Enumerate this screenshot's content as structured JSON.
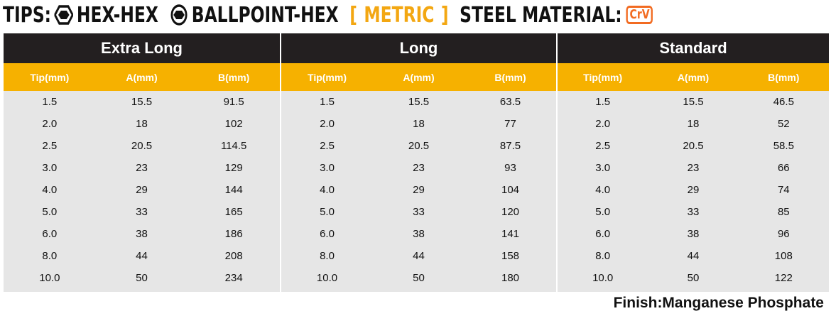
{
  "header": {
    "tips_label": "TIPS:",
    "tip1": "HEX-HEX",
    "tip2": "BALLPOINT-HEX",
    "bracket_open": "[",
    "metric": "METRIC",
    "bracket_close": "]",
    "steel_label": "STEEL MATERIAL:",
    "material_badge": "CrV",
    "icon1": "hex-icon",
    "icon2": "ballpoint-icon"
  },
  "colors": {
    "group_header_bg": "#231f20",
    "sub_header_bg": "#f6b100",
    "metric_text": "#f3a712",
    "badge": "#f26b21",
    "table_bg": "#e6e6e6"
  },
  "groups": [
    {
      "title": "Extra Long",
      "columns": [
        "Tip(mm)",
        "A(mm)",
        "B(mm)"
      ],
      "rows": [
        [
          "1.5",
          "15.5",
          "91.5"
        ],
        [
          "2.0",
          "18",
          "102"
        ],
        [
          "2.5",
          "20.5",
          "114.5"
        ],
        [
          "3.0",
          "23",
          "129"
        ],
        [
          "4.0",
          "29",
          "144"
        ],
        [
          "5.0",
          "33",
          "165"
        ],
        [
          "6.0",
          "38",
          "186"
        ],
        [
          "8.0",
          "44",
          "208"
        ],
        [
          "10.0",
          "50",
          "234"
        ]
      ]
    },
    {
      "title": "Long",
      "columns": [
        "Tip(mm)",
        "A(mm)",
        "B(mm)"
      ],
      "rows": [
        [
          "1.5",
          "15.5",
          "63.5"
        ],
        [
          "2.0",
          "18",
          "77"
        ],
        [
          "2.5",
          "20.5",
          "87.5"
        ],
        [
          "3.0",
          "23",
          "93"
        ],
        [
          "4.0",
          "29",
          "104"
        ],
        [
          "5.0",
          "33",
          "120"
        ],
        [
          "6.0",
          "38",
          "141"
        ],
        [
          "8.0",
          "44",
          "158"
        ],
        [
          "10.0",
          "50",
          "180"
        ]
      ]
    },
    {
      "title": "Standard",
      "columns": [
        "Tip(mm)",
        "A(mm)",
        "B(mm)"
      ],
      "rows": [
        [
          "1.5",
          "15.5",
          "46.5"
        ],
        [
          "2.0",
          "18",
          "52"
        ],
        [
          "2.5",
          "20.5",
          "58.5"
        ],
        [
          "3.0",
          "23",
          "66"
        ],
        [
          "4.0",
          "29",
          "74"
        ],
        [
          "5.0",
          "33",
          "85"
        ],
        [
          "6.0",
          "38",
          "96"
        ],
        [
          "8.0",
          "44",
          "108"
        ],
        [
          "10.0",
          "50",
          "122"
        ]
      ]
    }
  ],
  "finish": "Finish:Manganese Phosphate"
}
